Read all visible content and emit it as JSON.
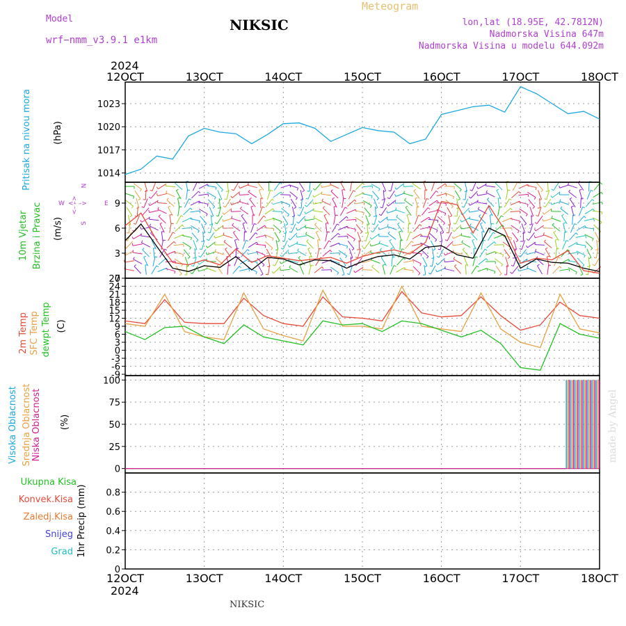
{
  "header": {
    "model_label": "Model",
    "model_name": "wrf−nmm_v3.9.1  e1km",
    "station": "NIKSIC",
    "meteogram": "Meteogram",
    "lonlat": "lon,lat (18.95E, 42.7812N)",
    "elevation": "Nadmorska Visina 647m",
    "model_elevation": "Nadmorska Visina u modelu 644.092m",
    "year_top": "2024",
    "year_bottom": "2024",
    "footer_station": "NIKSIC",
    "credit": "made by Angel"
  },
  "colors": {
    "pressure": "#1ca8e0",
    "temp2m": "#e84a3a",
    "sfc": "#e8a040",
    "dewpt": "#22c022",
    "purple": "#b040d0",
    "high_cloud": "#1ca8e0",
    "mid_cloud": "#e8a040",
    "low_cloud": "#d02090",
    "grid": "#9a9a9a"
  },
  "panel_labels": {
    "pressure": {
      "title": "Pritisak na nivou mora",
      "unit": "(hPa)"
    },
    "wind": {
      "title1": "10m Vjetar",
      "title2": "Brzina i Pravac",
      "unit": "(m/s)",
      "compass_n": "N",
      "compass_s": "S",
      "compass_w": "W",
      "compass_e": "E",
      "compass_arrow_h": "<– –>",
      "compass_arrow_v": "<– –>"
    },
    "temp": {
      "t2m": "2m Temp",
      "sfc": "SFC Temp",
      "dew": "dewpt Temp",
      "unit": "(C)"
    },
    "cloud": {
      "high": "Visoka Oblacnost",
      "mid": "Srednja Oblacnost",
      "low": "Niska Oblacnost",
      "unit": "(%)"
    },
    "precip": {
      "total": "Ukupna Kisa",
      "conv": "Konvek.Kisa",
      "frozen": "Zaledj.Kisa",
      "snow": "Snijeg",
      "hail": "Grad",
      "unit": "1hr Precip (mm)"
    }
  },
  "legend_colors": {
    "total": "#22c022",
    "conv": "#e84a3a",
    "frozen": "#e87a30",
    "snow": "#4040d8",
    "hail": "#20c0c0"
  },
  "chart_data": [
    {
      "type": "line",
      "name": "pressure",
      "x_ticks": [
        "12OCT",
        "13OCT",
        "14OCT",
        "15OCT",
        "16OCT",
        "17OCT",
        "18OCT"
      ],
      "xlim": [
        12,
        18
      ],
      "ylim": [
        1012.8,
        1025.8
      ],
      "y_ticks": [
        1014,
        1017,
        1020,
        1023
      ],
      "grid": true,
      "series": [
        {
          "name": "Pritisak na nivou mora",
          "x": [
            12.0,
            12.2,
            12.4,
            12.6,
            12.8,
            13.0,
            13.2,
            13.4,
            13.6,
            13.8,
            14.0,
            14.2,
            14.4,
            14.6,
            14.8,
            15.0,
            15.2,
            15.4,
            15.6,
            15.8,
            16.0,
            16.2,
            16.4,
            16.6,
            16.8,
            17.0,
            17.2,
            17.4,
            17.6,
            17.8,
            18.0
          ],
          "values": [
            1013.8,
            1014.5,
            1016.2,
            1015.8,
            1018.8,
            1019.8,
            1019.3,
            1019.1,
            1017.8,
            1019.0,
            1020.4,
            1020.5,
            1019.8,
            1018.1,
            1019.0,
            1019.9,
            1019.5,
            1019.3,
            1017.8,
            1018.4,
            1021.6,
            1022.1,
            1022.6,
            1022.8,
            1021.9,
            1025.2,
            1024.3,
            1023.0,
            1021.7,
            1022.0,
            1021.0
          ]
        }
      ]
    },
    {
      "type": "line",
      "name": "wind",
      "x_ticks": [
        "12OCT",
        "13OCT",
        "14OCT",
        "15OCT",
        "16OCT",
        "17OCT",
        "18OCT"
      ],
      "xlim": [
        12,
        18
      ],
      "ylim": [
        0,
        11.5
      ],
      "y_ticks": [
        0,
        3,
        6,
        9
      ],
      "grid": true,
      "series": [
        {
          "name": "speed",
          "x": [
            12.0,
            12.2,
            12.4,
            12.6,
            12.8,
            13.0,
            13.2,
            13.4,
            13.6,
            13.8,
            14.0,
            14.2,
            14.4,
            14.6,
            14.8,
            15.0,
            15.2,
            15.4,
            15.6,
            15.8,
            16.0,
            16.2,
            16.4,
            16.6,
            16.8,
            17.0,
            17.2,
            17.4,
            17.6,
            17.8,
            18.0
          ],
          "values": [
            4.5,
            6.5,
            3.8,
            1.2,
            0.8,
            1.5,
            1.3,
            2.6,
            1.0,
            2.5,
            2.3,
            1.6,
            2.2,
            2.1,
            1.2,
            2.0,
            2.6,
            2.8,
            2.3,
            3.7,
            3.9,
            2.8,
            2.4,
            6.0,
            5.1,
            1.2,
            2.3,
            1.9,
            1.8,
            1.2,
            0.8
          ]
        },
        {
          "name": "gust",
          "x": [
            12.0,
            12.2,
            12.4,
            12.6,
            12.8,
            13.0,
            13.2,
            13.4,
            13.6,
            13.8,
            14.0,
            14.2,
            14.4,
            14.6,
            14.8,
            15.0,
            15.2,
            15.4,
            15.6,
            15.8,
            16.0,
            16.2,
            16.4,
            16.6,
            16.8,
            17.0,
            17.2,
            17.4,
            17.6,
            17.8,
            18.0
          ],
          "values": [
            6.3,
            7.8,
            4.5,
            1.9,
            1.6,
            2.2,
            1.6,
            3.5,
            1.9,
            2.7,
            2.4,
            2.1,
            2.3,
            2.5,
            1.8,
            2.6,
            3.1,
            3.4,
            2.9,
            4.3,
            9.2,
            8.8,
            5.4,
            8.7,
            5.8,
            1.8,
            2.4,
            2.2,
            3.3,
            0.9,
            0.6
          ]
        }
      ]
    },
    {
      "type": "line",
      "name": "temperature",
      "x_ticks": [
        "12OCT",
        "13OCT",
        "14OCT",
        "15OCT",
        "16OCT",
        "17OCT",
        "18OCT"
      ],
      "xlim": [
        12,
        18
      ],
      "ylim": [
        -9.5,
        27
      ],
      "y_ticks": [
        -9,
        -6,
        -3,
        0,
        3,
        6,
        9,
        12,
        15,
        18,
        21,
        24,
        27
      ],
      "grid": true,
      "series": [
        {
          "name": "2m Temp",
          "x": [
            12.0,
            12.25,
            12.5,
            12.75,
            13.0,
            13.25,
            13.5,
            13.75,
            14.0,
            14.25,
            14.5,
            14.75,
            15.0,
            15.25,
            15.5,
            15.75,
            16.0,
            16.25,
            16.5,
            16.75,
            17.0,
            17.25,
            17.5,
            17.75,
            18.0
          ],
          "values": [
            11,
            10,
            19,
            10.5,
            10,
            10,
            19.5,
            13,
            10,
            9,
            20,
            12.5,
            12,
            11,
            22,
            14,
            12.5,
            13,
            20,
            13,
            7.5,
            9.5,
            18,
            13,
            12
          ]
        },
        {
          "name": "SFC Temp",
          "x": [
            12.0,
            12.25,
            12.5,
            12.75,
            13.0,
            13.25,
            13.5,
            13.75,
            14.0,
            14.25,
            14.5,
            14.75,
            15.0,
            15.25,
            15.5,
            15.75,
            16.0,
            16.25,
            16.5,
            16.75,
            17.0,
            17.25,
            17.5,
            17.75,
            18.0
          ],
          "values": [
            10,
            9,
            21,
            7,
            5,
            4,
            21.5,
            8,
            5.5,
            3.5,
            22.5,
            9,
            9,
            8,
            24,
            9,
            8,
            7,
            21.5,
            8,
            3,
            1,
            21,
            8,
            6.5
          ]
        },
        {
          "name": "dewpt Temp",
          "x": [
            12.0,
            12.25,
            12.5,
            12.75,
            13.0,
            13.25,
            13.5,
            13.75,
            14.0,
            14.25,
            14.5,
            14.75,
            15.0,
            15.25,
            15.5,
            15.75,
            16.0,
            16.25,
            16.5,
            16.75,
            17.0,
            17.25,
            17.5,
            17.75,
            18.0
          ],
          "values": [
            7,
            4,
            8.5,
            9,
            5,
            2.5,
            9.5,
            5,
            3.5,
            2,
            11,
            9.5,
            10,
            7,
            11,
            10,
            7.5,
            5,
            7.5,
            2.5,
            -6.5,
            -7.5,
            10,
            6,
            4.5
          ]
        }
      ]
    },
    {
      "type": "line",
      "name": "cloud",
      "x_ticks": [
        "12OCT",
        "13OCT",
        "14OCT",
        "15OCT",
        "16OCT",
        "17OCT",
        "18OCT"
      ],
      "xlim": [
        12,
        18
      ],
      "ylim": [
        -5,
        105
      ],
      "y_ticks": [
        0,
        25,
        50,
        75,
        100
      ],
      "grid": true,
      "series": [
        {
          "name": "Visoka Oblacnost",
          "x": [
            12,
            17.58
          ],
          "values": [
            0,
            0
          ]
        },
        {
          "name": "Srednja Oblacnost",
          "x": [
            12,
            17.58
          ],
          "values": [
            0,
            0
          ]
        },
        {
          "name": "Niska Oblacnost",
          "x": [
            12,
            18
          ],
          "values": [
            0,
            0
          ]
        }
      ],
      "bursts": {
        "start": 17.58,
        "end": 18.0,
        "value": 100
      }
    },
    {
      "type": "bar",
      "name": "precip",
      "x_ticks": [
        "12OCT",
        "13OCT",
        "14OCT",
        "15OCT",
        "16OCT",
        "17OCT",
        "18OCT"
      ],
      "xlim": [
        12,
        18
      ],
      "ylim": [
        0,
        1.0
      ],
      "y_ticks": [
        0,
        0.2,
        0.4,
        0.6,
        0.8
      ],
      "grid": true,
      "series": [
        {
          "name": "Ukupna Kisa",
          "values": []
        }
      ]
    }
  ]
}
